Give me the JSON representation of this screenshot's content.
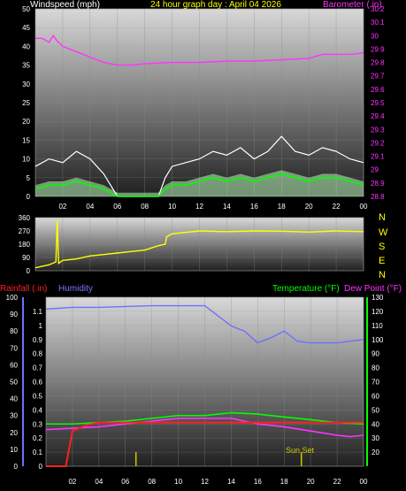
{
  "header": {
    "left_title": "Windspeed (mph)",
    "center_title": "24 hour graph day : April 04 2026",
    "right_title": "Barometer (.in)"
  },
  "colors": {
    "windspeed_title": "#ffffff",
    "center_title": "#ffff00",
    "barometer": "#ff33ff",
    "wind_gust": "#ffffff",
    "wind_avg": "#00ff00",
    "wind_fill": "#b8f4b8",
    "wind_dir": "#ffff00",
    "compass": "#ffff00",
    "rainfall": "#ff2020",
    "humidity": "#7070ff",
    "temperature": "#00ff00",
    "dew_point": "#ff33ff",
    "sunset": "#c8c800"
  },
  "x_ticks": [
    "02",
    "04",
    "06",
    "08",
    "10",
    "12",
    "14",
    "16",
    "18",
    "20",
    "22",
    "00"
  ],
  "compass": [
    "N",
    "W",
    "S",
    "E",
    "N"
  ],
  "bottom_header": {
    "rainfall": "Rainfall (.in)",
    "humidity": "Humidity",
    "temperature": "Temperature (°F)",
    "dew_point": "Dew Point (°F)"
  },
  "sunset_label": "Sun Set",
  "chart_data": [
    {
      "type": "line",
      "name": "wind-barometer",
      "x": "hour",
      "left_axis": {
        "label": "Windspeed (mph)",
        "ylim": [
          0,
          50
        ],
        "ticks": [
          0,
          5,
          10,
          15,
          20,
          25,
          30,
          35,
          40,
          45,
          50
        ]
      },
      "right_axis": {
        "label": "Barometer (.in)",
        "ylim": [
          28.8,
          30.2
        ],
        "ticks": [
          "28.8",
          "28.9",
          "29",
          "29.1",
          "29.2",
          "29.3",
          "29.4",
          "29.5",
          "29.6",
          "29.7",
          "29.8",
          "29.9",
          "30",
          "30.1",
          "30.2"
        ]
      },
      "series": [
        {
          "name": "Barometer",
          "axis": "right",
          "x": [
            0,
            0.5,
            1,
            1.3,
            1.6,
            2,
            3,
            4,
            5,
            6,
            7,
            8,
            10,
            12,
            14,
            16,
            18,
            20,
            21,
            22,
            23,
            24
          ],
          "values": [
            29.98,
            29.98,
            29.95,
            30.0,
            29.96,
            29.92,
            29.88,
            29.84,
            29.8,
            29.78,
            29.78,
            29.79,
            29.8,
            29.8,
            29.81,
            29.81,
            29.82,
            29.83,
            29.86,
            29.86,
            29.86,
            29.87
          ]
        },
        {
          "name": "Wind gust",
          "axis": "left",
          "x": [
            0,
            1,
            2,
            3,
            4,
            5,
            5.5,
            6,
            7,
            8,
            9,
            9.5,
            10,
            11,
            12,
            13,
            14,
            15,
            16,
            17,
            18,
            19,
            20,
            21,
            22,
            23,
            24
          ],
          "values": [
            8,
            10,
            9,
            12,
            10,
            6,
            3,
            0,
            0,
            0,
            0,
            5,
            8,
            9,
            10,
            12,
            11,
            13,
            10,
            12,
            16,
            12,
            11,
            13,
            12,
            10,
            9
          ]
        },
        {
          "name": "Wind average",
          "axis": "left",
          "x": [
            0,
            1,
            2,
            3,
            4,
            5,
            5.5,
            6,
            7,
            8,
            9,
            9.5,
            10,
            11,
            12,
            13,
            14,
            15,
            16,
            17,
            18,
            19,
            20,
            21,
            22,
            23,
            24
          ],
          "values": [
            2,
            3,
            3,
            4,
            3,
            2,
            1,
            0,
            0,
            0,
            0,
            2,
            3,
            3,
            4,
            5,
            4,
            5,
            4,
            5,
            6,
            5,
            4,
            5,
            5,
            4,
            3
          ]
        }
      ]
    },
    {
      "type": "line",
      "name": "wind-direction",
      "ylim": [
        0,
        360
      ],
      "ticks": [
        0,
        90,
        180,
        270,
        360
      ],
      "series": [
        {
          "name": "Wind direction",
          "x": [
            0,
            1,
            1.5,
            1.6,
            1.7,
            2,
            3,
            4,
            5,
            6,
            7,
            8,
            9,
            9.5,
            9.6,
            10,
            12,
            14,
            16,
            18,
            20,
            22,
            24
          ],
          "values": [
            20,
            40,
            60,
            340,
            50,
            70,
            80,
            100,
            110,
            120,
            130,
            140,
            170,
            180,
            230,
            250,
            270,
            265,
            270,
            268,
            262,
            270,
            265
          ]
        }
      ]
    },
    {
      "type": "line",
      "name": "rain-humidity-temp",
      "axes": {
        "rainfall": {
          "label": "Rainfall (.in)",
          "ylim": [
            0,
            1.2
          ],
          "ticks": [
            "0",
            "0.1",
            "0.2",
            "0.3",
            "0.4",
            "0.5",
            "0.6",
            "0.7",
            "0.8",
            "0.9",
            "1",
            "1.1"
          ]
        },
        "humidity": {
          "label": "Humidity",
          "ylim": [
            0,
            100
          ],
          "ticks": [
            0,
            10,
            20,
            30,
            40,
            50,
            60,
            70,
            80,
            90,
            100
          ]
        },
        "temperature": {
          "label": "Temperature (°F)",
          "ylim": [
            10,
            130
          ],
          "ticks": [
            20,
            30,
            40,
            50,
            60,
            70,
            80,
            90,
            100,
            110,
            120,
            130
          ]
        }
      },
      "series": [
        {
          "name": "Rainfall",
          "axis": "rainfall",
          "x": [
            0,
            1.5,
            2,
            3,
            4,
            24
          ],
          "values": [
            0,
            0,
            0.25,
            0.29,
            0.31,
            0.31
          ]
        },
        {
          "name": "Humidity",
          "axis": "humidity",
          "x": [
            0,
            2,
            4,
            8,
            12,
            14,
            15,
            16,
            17,
            18,
            19,
            20,
            22,
            24
          ],
          "values": [
            93,
            94,
            94,
            95,
            95,
            83,
            80,
            73,
            76,
            80,
            74,
            73,
            73,
            75
          ]
        },
        {
          "name": "Temperature",
          "axis": "temperature",
          "x": [
            0,
            2,
            4,
            6,
            8,
            10,
            12,
            14,
            16,
            18,
            20,
            22,
            24
          ],
          "values": [
            40,
            40,
            41,
            42,
            44,
            46,
            46,
            48,
            47,
            45,
            43,
            41,
            40
          ]
        },
        {
          "name": "Dew Point",
          "axis": "temperature",
          "x": [
            0,
            2,
            4,
            6,
            8,
            10,
            12,
            14,
            16,
            18,
            20,
            22,
            23,
            24
          ],
          "values": [
            36,
            37,
            38,
            40,
            42,
            44,
            44,
            44,
            40,
            38,
            35,
            32,
            31,
            32
          ]
        }
      ],
      "events": [
        {
          "x": 6.8
        },
        {
          "x": 19.3,
          "label": "Sun Set"
        }
      ]
    }
  ]
}
